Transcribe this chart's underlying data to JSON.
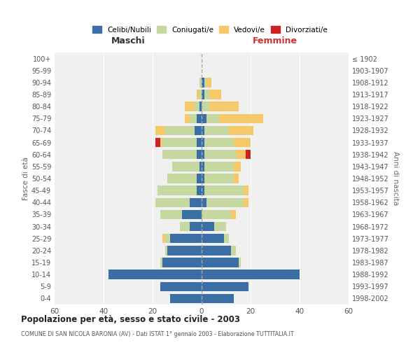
{
  "age_groups": [
    "0-4",
    "5-9",
    "10-14",
    "15-19",
    "20-24",
    "25-29",
    "30-34",
    "35-39",
    "40-44",
    "45-49",
    "50-54",
    "55-59",
    "60-64",
    "65-69",
    "70-74",
    "75-79",
    "80-84",
    "85-89",
    "90-94",
    "95-99",
    "100+"
  ],
  "birth_years": [
    "1998-2002",
    "1993-1997",
    "1988-1992",
    "1983-1987",
    "1978-1982",
    "1973-1977",
    "1968-1972",
    "1963-1967",
    "1958-1962",
    "1953-1957",
    "1948-1952",
    "1943-1947",
    "1938-1942",
    "1933-1937",
    "1928-1932",
    "1923-1927",
    "1918-1922",
    "1913-1917",
    "1908-1912",
    "1903-1907",
    "≤ 1902"
  ],
  "maschi": {
    "celibi": [
      13,
      17,
      38,
      16,
      14,
      13,
      5,
      8,
      5,
      2,
      2,
      1,
      2,
      2,
      3,
      2,
      1,
      0,
      0,
      0,
      0
    ],
    "coniugati": [
      0,
      0,
      0,
      1,
      1,
      2,
      4,
      9,
      14,
      16,
      12,
      11,
      14,
      14,
      12,
      3,
      2,
      1,
      1,
      0,
      0
    ],
    "vedovi": [
      0,
      0,
      0,
      0,
      0,
      1,
      0,
      0,
      0,
      0,
      0,
      0,
      0,
      1,
      4,
      2,
      4,
      1,
      0,
      0,
      0
    ],
    "divorziati": [
      0,
      0,
      0,
      0,
      0,
      0,
      0,
      0,
      0,
      0,
      0,
      0,
      0,
      2,
      0,
      0,
      0,
      0,
      0,
      0,
      0
    ]
  },
  "femmine": {
    "nubili": [
      13,
      19,
      40,
      15,
      12,
      9,
      5,
      0,
      2,
      1,
      1,
      1,
      1,
      1,
      1,
      2,
      0,
      1,
      1,
      0,
      0
    ],
    "coniugate": [
      0,
      0,
      0,
      1,
      2,
      2,
      5,
      12,
      15,
      16,
      12,
      12,
      13,
      12,
      10,
      5,
      3,
      2,
      1,
      0,
      0
    ],
    "vedove": [
      0,
      0,
      0,
      0,
      0,
      0,
      0,
      2,
      2,
      2,
      2,
      3,
      4,
      7,
      10,
      18,
      12,
      5,
      2,
      0,
      0
    ],
    "divorziate": [
      0,
      0,
      0,
      0,
      0,
      0,
      0,
      0,
      0,
      0,
      0,
      0,
      2,
      0,
      0,
      0,
      0,
      0,
      0,
      0,
      0
    ]
  },
  "colors": {
    "celibi": "#3a6ea5",
    "coniugati": "#c5d8a0",
    "vedovi": "#f5c96a",
    "divorziati": "#cc2222"
  },
  "title": "Popolazione per età, sesso e stato civile - 2003",
  "subtitle": "COMUNE DI SAN NICOLA BARONIA (AV) - Dati ISTAT 1° gennaio 2003 - Elaborazione TUTTITALIA.IT",
  "ylabel_left": "Fasce di età",
  "ylabel_right": "Anni di nascita",
  "xlabel_left": "Maschi",
  "xlabel_right": "Femmine",
  "xlim": 60,
  "legend_labels": [
    "Celibi/Nubili",
    "Coniugati/e",
    "Vedovi/e",
    "Divorziati/e"
  ],
  "bg_color": "#f0f0f0"
}
